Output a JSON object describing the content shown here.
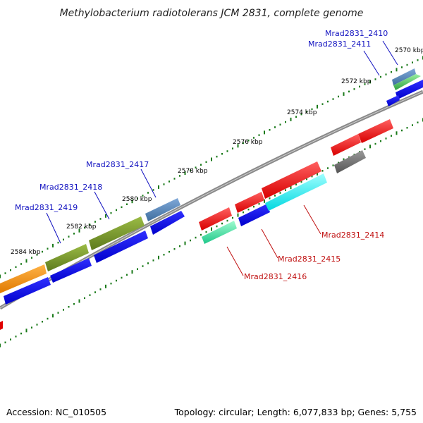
{
  "title": "Methylobacterium radiotolerans JCM 2831, complete genome",
  "footer": {
    "accession": "Accession: NC_010505",
    "summary": "Topology: circular; Length: 6,077,833 bp; Genes: 5,755"
  },
  "ticks": [
    "2570 kbp",
    "2572 kbp",
    "2574 kbp",
    "2576 kbp",
    "2578 kbp",
    "2580 kbp",
    "2582 kbp",
    "2584 kbp"
  ],
  "gene_labels": {
    "forward": [
      "Mrad2831_2410",
      "Mrad2831_2411",
      "Mrad2831_2417",
      "Mrad2831_2418",
      "Mrad2831_2419"
    ],
    "reverse": [
      "Mrad2831_2414",
      "Mrad2831_2415",
      "Mrad2831_2416"
    ]
  },
  "colors": {
    "forward_label": "#1010c0",
    "reverse_label": "#c01010",
    "backbone": "#808080",
    "tick": "#1a7a1a"
  }
}
